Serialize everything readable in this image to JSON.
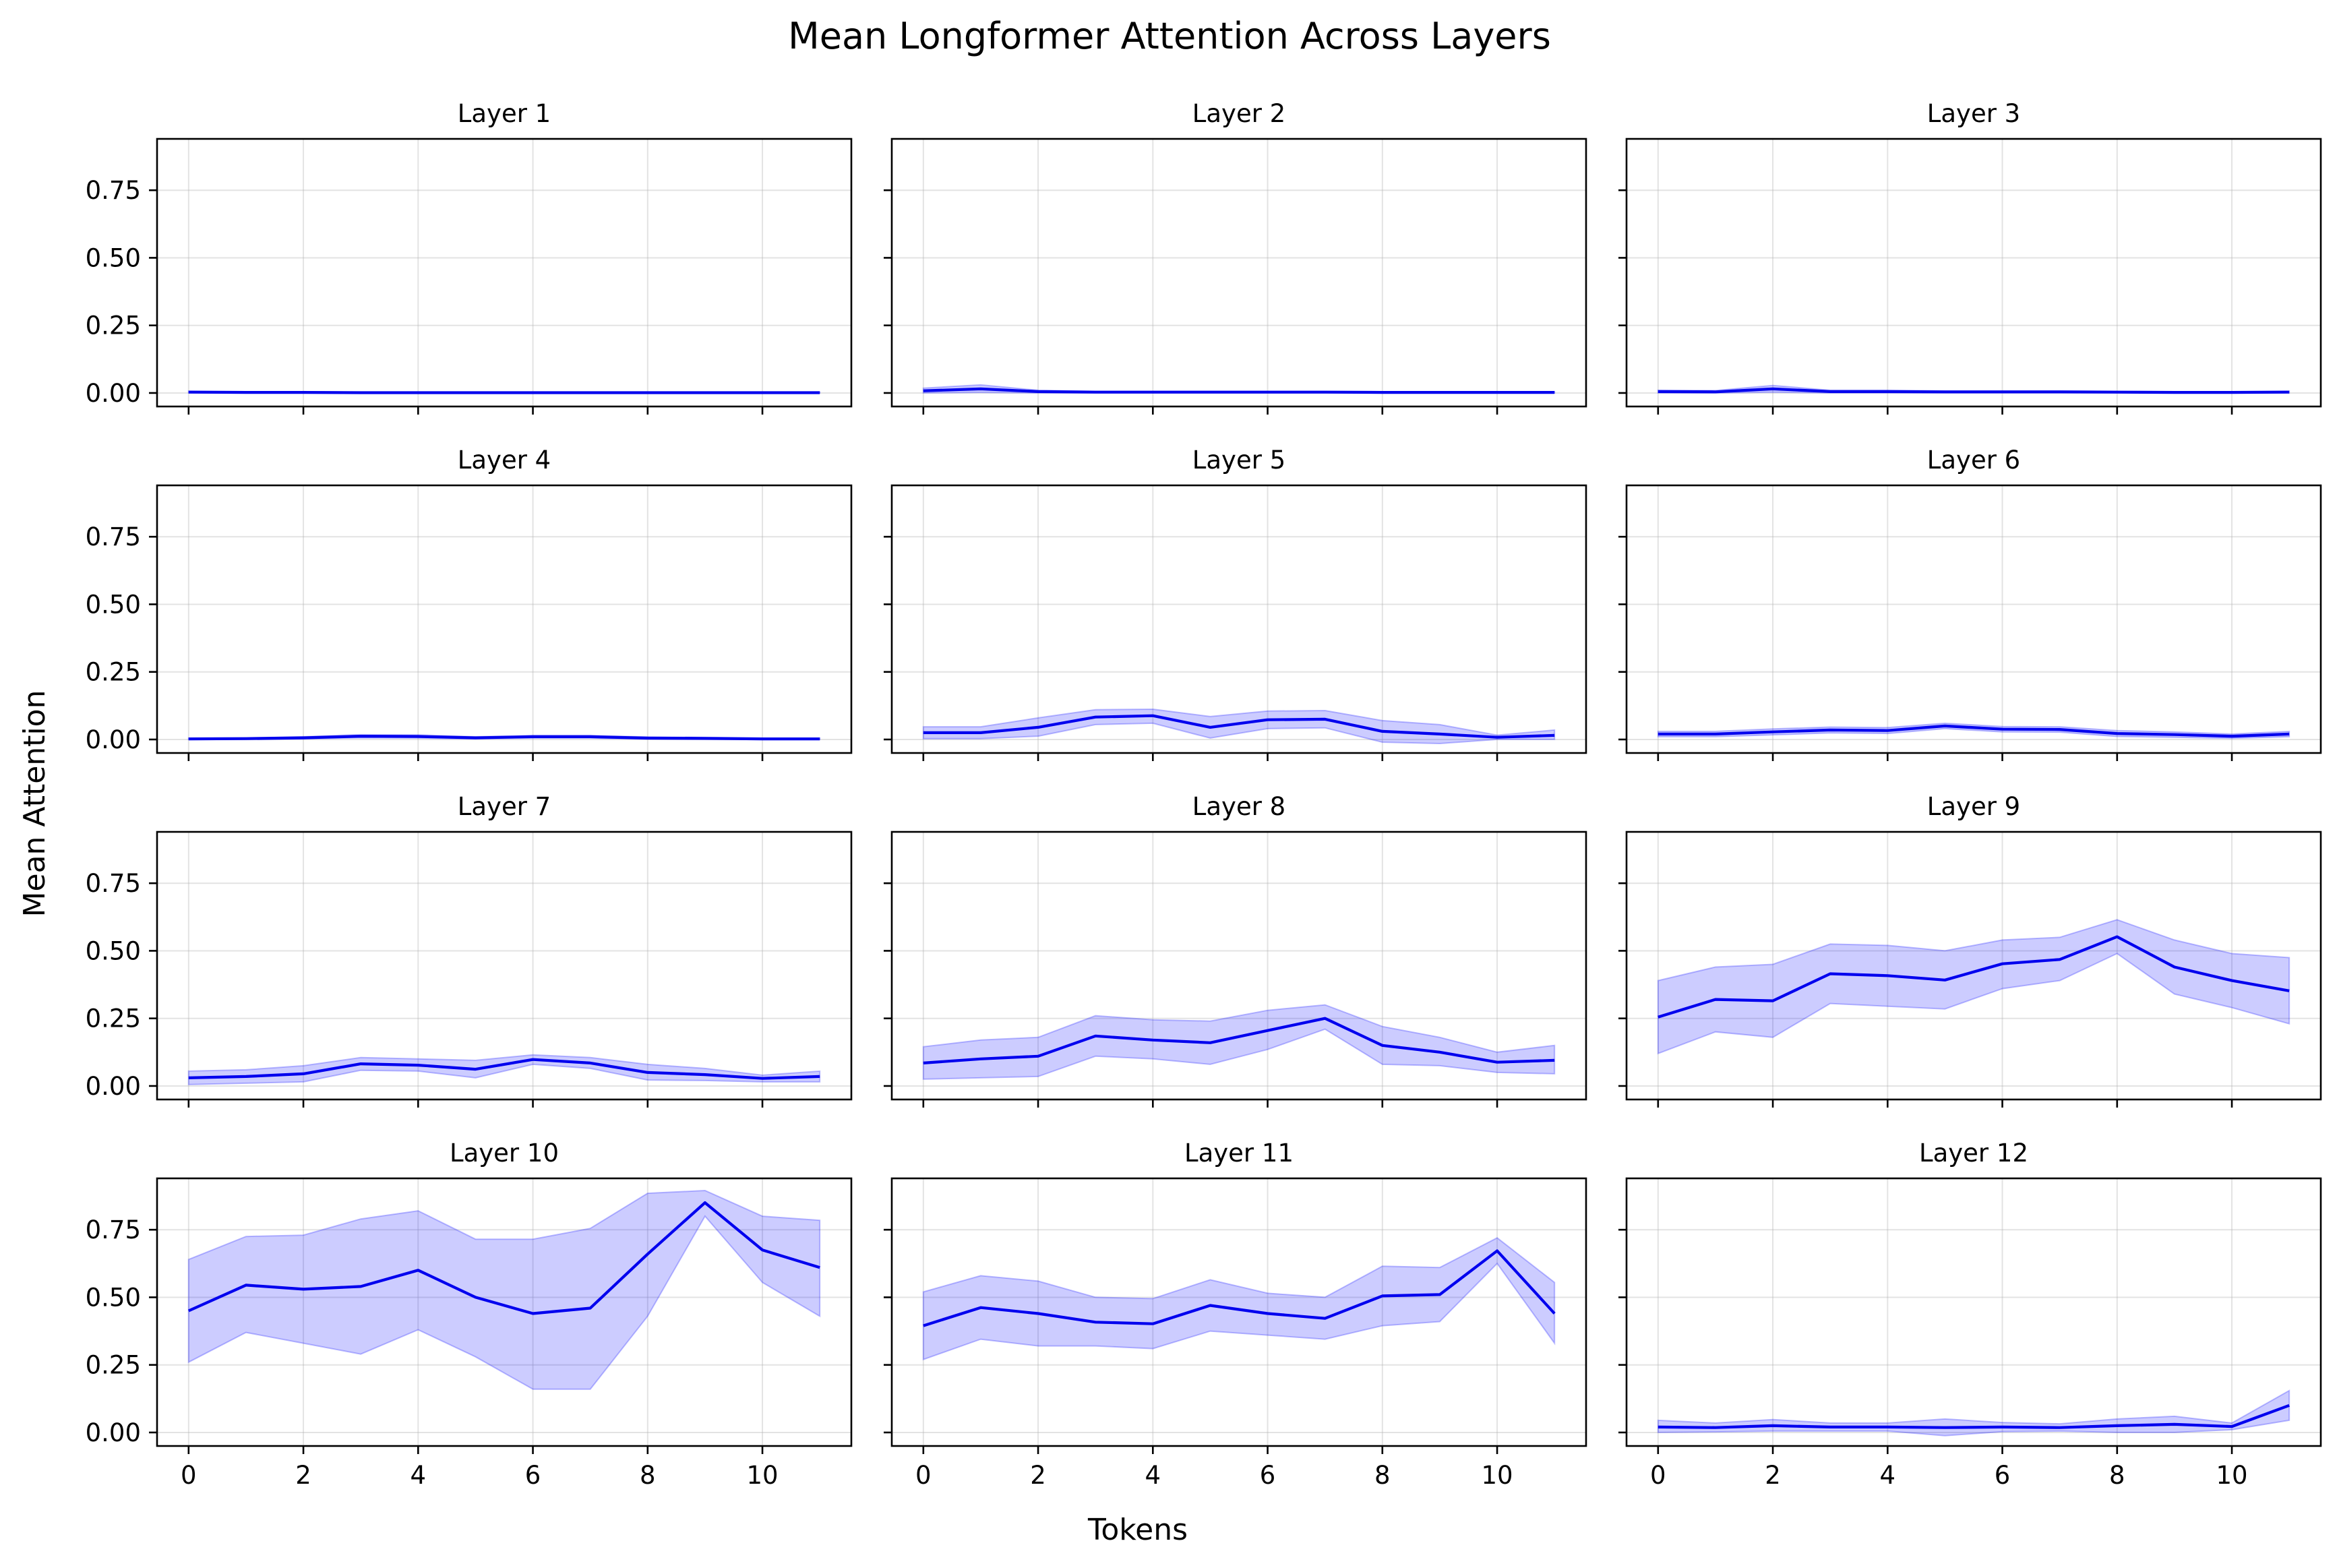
{
  "figure": {
    "title": "Mean Longformer Attention Across Layers",
    "xlabel": "Tokens",
    "ylabel": "Mean Attention"
  },
  "colors": {
    "line": "#0000ee",
    "band": "#0000ff",
    "band_opacity": 0.2
  },
  "chart_data": [
    {
      "type": "line",
      "title": "Layer 1",
      "x": [
        0,
        1,
        2,
        3,
        4,
        5,
        6,
        7,
        8,
        9,
        10,
        11
      ],
      "series": [
        {
          "values": [
            0.003,
            0.002,
            0.002,
            0.001,
            0.001,
            0.001,
            0.001,
            0.001,
            0.001,
            0.001,
            0.001,
            0.001
          ],
          "lower": [
            0.0,
            0.0,
            0.0,
            0.0,
            0.0,
            0.0,
            0.0,
            0.0,
            0.0,
            0.0,
            0.0,
            0.0
          ],
          "upper": [
            0.007,
            0.005,
            0.005,
            0.003,
            0.003,
            0.003,
            0.003,
            0.003,
            0.003,
            0.003,
            0.003,
            0.003
          ]
        }
      ],
      "xticks": [
        0,
        2,
        4,
        6,
        8,
        10
      ],
      "yticks": [
        0.0,
        0.25,
        0.5,
        0.75
      ],
      "xlim": [
        -0.55,
        11.55
      ],
      "ylim": [
        -0.05,
        0.94
      ],
      "grid": true
    },
    {
      "type": "line",
      "title": "Layer 2",
      "x": [
        0,
        1,
        2,
        3,
        4,
        5,
        6,
        7,
        8,
        9,
        10,
        11
      ],
      "series": [
        {
          "values": [
            0.008,
            0.015,
            0.005,
            0.003,
            0.003,
            0.003,
            0.003,
            0.003,
            0.002,
            0.002,
            0.002,
            0.002
          ],
          "lower": [
            0.0,
            0.002,
            0.0,
            0.0,
            0.0,
            0.0,
            0.0,
            0.0,
            0.0,
            0.0,
            0.0,
            0.0
          ],
          "upper": [
            0.018,
            0.03,
            0.01,
            0.006,
            0.006,
            0.006,
            0.006,
            0.006,
            0.005,
            0.005,
            0.005,
            0.005
          ]
        }
      ],
      "xticks": [
        0,
        2,
        4,
        6,
        8,
        10
      ],
      "yticks": [
        0.0,
        0.25,
        0.5,
        0.75
      ],
      "xlim": [
        -0.55,
        11.55
      ],
      "ylim": [
        -0.05,
        0.94
      ],
      "grid": true
    },
    {
      "type": "line",
      "title": "Layer 3",
      "x": [
        0,
        1,
        2,
        3,
        4,
        5,
        6,
        7,
        8,
        9,
        10,
        11
      ],
      "series": [
        {
          "values": [
            0.005,
            0.004,
            0.015,
            0.005,
            0.005,
            0.004,
            0.004,
            0.004,
            0.003,
            0.002,
            0.002,
            0.003
          ],
          "lower": [
            0.0,
            0.0,
            0.003,
            0.0,
            0.0,
            0.0,
            0.0,
            0.0,
            0.0,
            0.0,
            0.0,
            0.0
          ],
          "upper": [
            0.01,
            0.009,
            0.028,
            0.01,
            0.01,
            0.008,
            0.008,
            0.008,
            0.006,
            0.005,
            0.005,
            0.007
          ]
        }
      ],
      "xticks": [
        0,
        2,
        4,
        6,
        8,
        10
      ],
      "yticks": [
        0.0,
        0.25,
        0.5,
        0.75
      ],
      "xlim": [
        -0.55,
        11.55
      ],
      "ylim": [
        -0.05,
        0.94
      ],
      "grid": true
    },
    {
      "type": "line",
      "title": "Layer 4",
      "x": [
        0,
        1,
        2,
        3,
        4,
        5,
        6,
        7,
        8,
        9,
        10,
        11
      ],
      "series": [
        {
          "values": [
            0.002,
            0.003,
            0.006,
            0.012,
            0.011,
            0.006,
            0.01,
            0.01,
            0.005,
            0.004,
            0.002,
            0.002
          ],
          "lower": [
            0.0,
            0.0,
            0.002,
            0.006,
            0.005,
            0.002,
            0.005,
            0.005,
            0.001,
            0.0,
            0.0,
            0.0
          ],
          "upper": [
            0.005,
            0.006,
            0.01,
            0.018,
            0.017,
            0.01,
            0.015,
            0.015,
            0.009,
            0.008,
            0.005,
            0.005
          ]
        }
      ],
      "xticks": [
        0,
        2,
        4,
        6,
        8,
        10
      ],
      "yticks": [
        0.0,
        0.25,
        0.5,
        0.75
      ],
      "xlim": [
        -0.55,
        11.55
      ],
      "ylim": [
        -0.05,
        0.94
      ],
      "grid": true
    },
    {
      "type": "line",
      "title": "Layer 5",
      "x": [
        0,
        1,
        2,
        3,
        4,
        5,
        6,
        7,
        8,
        9,
        10,
        11
      ],
      "series": [
        {
          "values": [
            0.025,
            0.025,
            0.045,
            0.083,
            0.088,
            0.045,
            0.073,
            0.075,
            0.03,
            0.02,
            0.008,
            0.015
          ],
          "lower": [
            0.003,
            0.003,
            0.012,
            0.055,
            0.06,
            0.005,
            0.04,
            0.043,
            -0.01,
            -0.015,
            0.0,
            0.0
          ],
          "upper": [
            0.047,
            0.047,
            0.08,
            0.11,
            0.112,
            0.085,
            0.105,
            0.107,
            0.07,
            0.055,
            0.016,
            0.035
          ]
        }
      ],
      "xticks": [
        0,
        2,
        4,
        6,
        8,
        10
      ],
      "yticks": [
        0.0,
        0.25,
        0.5,
        0.75
      ],
      "xlim": [
        -0.55,
        11.55
      ],
      "ylim": [
        -0.05,
        0.94
      ],
      "grid": true
    },
    {
      "type": "line",
      "title": "Layer 6",
      "x": [
        0,
        1,
        2,
        3,
        4,
        5,
        6,
        7,
        8,
        9,
        10,
        11
      ],
      "series": [
        {
          "values": [
            0.02,
            0.02,
            0.028,
            0.035,
            0.033,
            0.05,
            0.038,
            0.037,
            0.022,
            0.018,
            0.012,
            0.02
          ],
          "lower": [
            0.01,
            0.01,
            0.017,
            0.024,
            0.022,
            0.04,
            0.028,
            0.027,
            0.011,
            0.008,
            0.004,
            0.01
          ],
          "upper": [
            0.03,
            0.03,
            0.039,
            0.046,
            0.044,
            0.06,
            0.048,
            0.047,
            0.033,
            0.028,
            0.02,
            0.03
          ]
        }
      ],
      "xticks": [
        0,
        2,
        4,
        6,
        8,
        10
      ],
      "yticks": [
        0.0,
        0.25,
        0.5,
        0.75
      ],
      "xlim": [
        -0.55,
        11.55
      ],
      "ylim": [
        -0.05,
        0.94
      ],
      "grid": true
    },
    {
      "type": "line",
      "title": "Layer 7",
      "x": [
        0,
        1,
        2,
        3,
        4,
        5,
        6,
        7,
        8,
        9,
        10,
        11
      ],
      "series": [
        {
          "values": [
            0.03,
            0.035,
            0.045,
            0.082,
            0.077,
            0.062,
            0.098,
            0.085,
            0.05,
            0.042,
            0.028,
            0.035
          ],
          "lower": [
            0.005,
            0.01,
            0.015,
            0.058,
            0.055,
            0.03,
            0.08,
            0.065,
            0.022,
            0.02,
            0.015,
            0.015
          ],
          "upper": [
            0.055,
            0.06,
            0.075,
            0.105,
            0.1,
            0.095,
            0.115,
            0.105,
            0.08,
            0.065,
            0.04,
            0.055
          ]
        }
      ],
      "xticks": [
        0,
        2,
        4,
        6,
        8,
        10
      ],
      "yticks": [
        0.0,
        0.25,
        0.5,
        0.75
      ],
      "xlim": [
        -0.55,
        11.55
      ],
      "ylim": [
        -0.05,
        0.94
      ],
      "grid": true
    },
    {
      "type": "line",
      "title": "Layer 8",
      "x": [
        0,
        1,
        2,
        3,
        4,
        5,
        6,
        7,
        8,
        9,
        10,
        11
      ],
      "series": [
        {
          "values": [
            0.085,
            0.1,
            0.11,
            0.185,
            0.17,
            0.16,
            0.205,
            0.25,
            0.15,
            0.125,
            0.088,
            0.095
          ],
          "lower": [
            0.025,
            0.03,
            0.035,
            0.11,
            0.1,
            0.08,
            0.135,
            0.21,
            0.08,
            0.075,
            0.05,
            0.045
          ],
          "upper": [
            0.145,
            0.17,
            0.18,
            0.26,
            0.245,
            0.24,
            0.28,
            0.3,
            0.22,
            0.18,
            0.125,
            0.15
          ]
        }
      ],
      "xticks": [
        0,
        2,
        4,
        6,
        8,
        10
      ],
      "yticks": [
        0.0,
        0.25,
        0.5,
        0.75
      ],
      "xlim": [
        -0.55,
        11.55
      ],
      "ylim": [
        -0.05,
        0.94
      ],
      "grid": true
    },
    {
      "type": "line",
      "title": "Layer 9",
      "x": [
        0,
        1,
        2,
        3,
        4,
        5,
        6,
        7,
        8,
        9,
        10,
        11
      ],
      "series": [
        {
          "values": [
            0.255,
            0.32,
            0.315,
            0.415,
            0.408,
            0.392,
            0.452,
            0.468,
            0.552,
            0.44,
            0.39,
            0.352
          ],
          "lower": [
            0.12,
            0.2,
            0.18,
            0.305,
            0.295,
            0.285,
            0.36,
            0.39,
            0.49,
            0.34,
            0.29,
            0.23
          ],
          "upper": [
            0.39,
            0.44,
            0.45,
            0.525,
            0.52,
            0.5,
            0.54,
            0.55,
            0.615,
            0.54,
            0.49,
            0.475
          ]
        }
      ],
      "xticks": [
        0,
        2,
        4,
        6,
        8,
        10
      ],
      "yticks": [
        0.0,
        0.25,
        0.5,
        0.75
      ],
      "xlim": [
        -0.55,
        11.55
      ],
      "ylim": [
        -0.05,
        0.94
      ],
      "grid": true
    },
    {
      "type": "line",
      "title": "Layer 10",
      "x": [
        0,
        1,
        2,
        3,
        4,
        5,
        6,
        7,
        8,
        9,
        10,
        11
      ],
      "series": [
        {
          "values": [
            0.45,
            0.545,
            0.53,
            0.54,
            0.6,
            0.5,
            0.44,
            0.46,
            0.66,
            0.85,
            0.675,
            0.61
          ],
          "lower": [
            0.26,
            0.37,
            0.33,
            0.29,
            0.38,
            0.28,
            0.16,
            0.16,
            0.43,
            0.8,
            0.555,
            0.43
          ],
          "upper": [
            0.64,
            0.725,
            0.73,
            0.79,
            0.82,
            0.715,
            0.715,
            0.755,
            0.885,
            0.895,
            0.8,
            0.785
          ]
        }
      ],
      "xticks": [
        0,
        2,
        4,
        6,
        8,
        10
      ],
      "yticks": [
        0.0,
        0.25,
        0.5,
        0.75
      ],
      "xlim": [
        -0.55,
        11.55
      ],
      "ylim": [
        -0.05,
        0.94
      ],
      "grid": true
    },
    {
      "type": "line",
      "title": "Layer 11",
      "x": [
        0,
        1,
        2,
        3,
        4,
        5,
        6,
        7,
        8,
        9,
        10,
        11
      ],
      "series": [
        {
          "values": [
            0.395,
            0.462,
            0.44,
            0.408,
            0.402,
            0.47,
            0.44,
            0.422,
            0.505,
            0.51,
            0.672,
            0.44
          ],
          "lower": [
            0.27,
            0.345,
            0.32,
            0.32,
            0.31,
            0.375,
            0.36,
            0.345,
            0.395,
            0.41,
            0.625,
            0.33
          ],
          "upper": [
            0.52,
            0.58,
            0.56,
            0.5,
            0.495,
            0.565,
            0.515,
            0.5,
            0.615,
            0.61,
            0.72,
            0.555
          ]
        }
      ],
      "xticks": [
        0,
        2,
        4,
        6,
        8,
        10
      ],
      "yticks": [
        0.0,
        0.25,
        0.5,
        0.75
      ],
      "xlim": [
        -0.55,
        11.55
      ],
      "ylim": [
        -0.05,
        0.94
      ],
      "grid": true
    },
    {
      "type": "line",
      "title": "Layer 12",
      "x": [
        0,
        1,
        2,
        3,
        4,
        5,
        6,
        7,
        8,
        9,
        10,
        11
      ],
      "series": [
        {
          "values": [
            0.02,
            0.018,
            0.025,
            0.02,
            0.02,
            0.018,
            0.02,
            0.018,
            0.025,
            0.03,
            0.022,
            0.1
          ],
          "lower": [
            0.0,
            0.002,
            0.005,
            0.005,
            0.005,
            -0.012,
            0.003,
            0.005,
            0.0,
            0.0,
            0.01,
            0.045
          ],
          "upper": [
            0.045,
            0.035,
            0.048,
            0.035,
            0.035,
            0.05,
            0.037,
            0.032,
            0.05,
            0.06,
            0.035,
            0.155
          ]
        }
      ],
      "xticks": [
        0,
        2,
        4,
        6,
        8,
        10
      ],
      "yticks": [
        0.0,
        0.25,
        0.5,
        0.75
      ],
      "xlim": [
        -0.55,
        11.55
      ],
      "ylim": [
        -0.05,
        0.94
      ],
      "grid": true
    }
  ]
}
